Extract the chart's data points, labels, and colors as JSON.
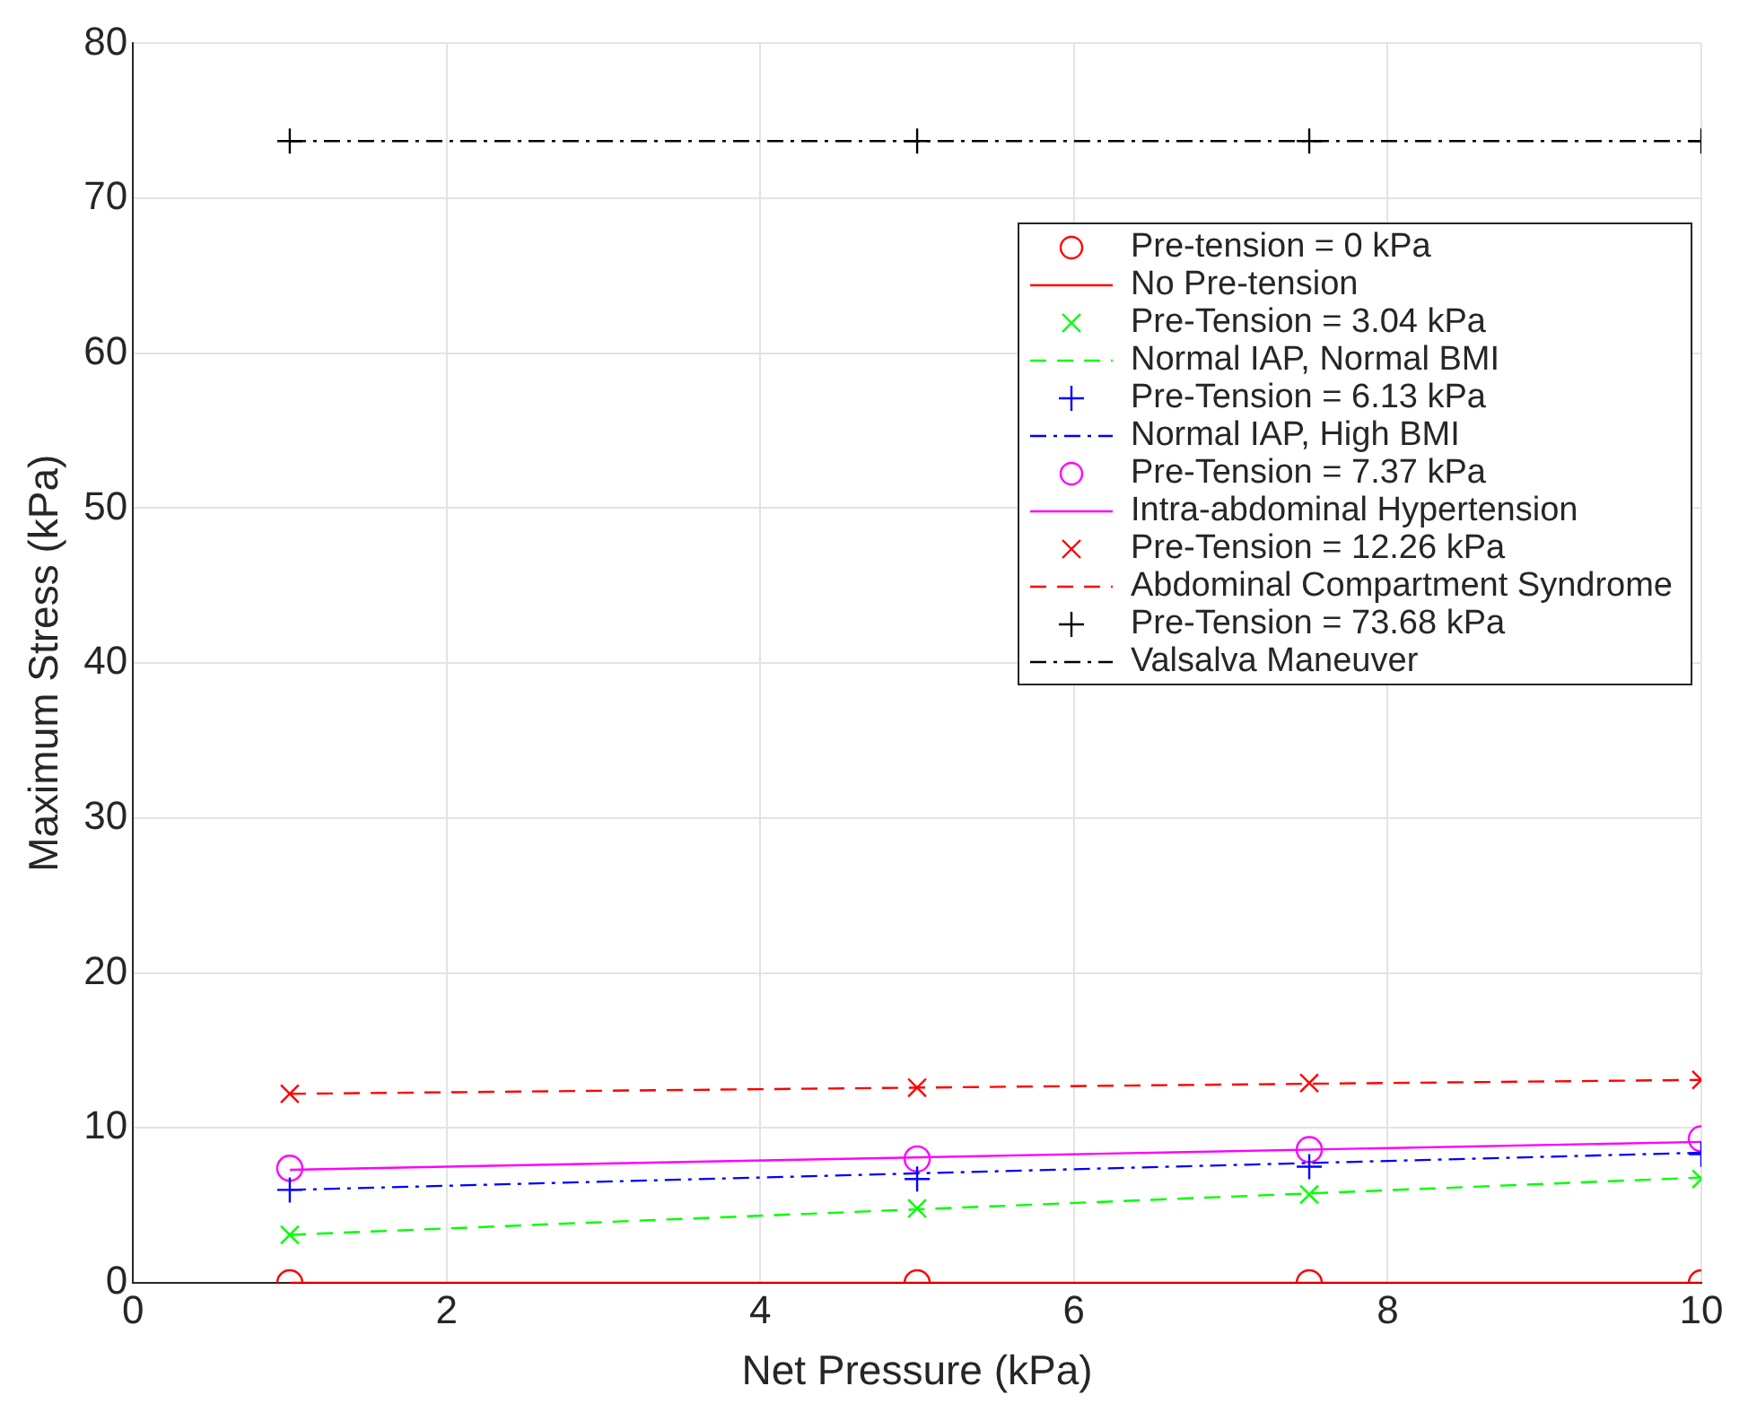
{
  "chart_data": {
    "type": "scatter",
    "xlabel": "Net Pressure (kPa)",
    "ylabel": "Maximum Stress (kPa)",
    "xlim": [
      0,
      10
    ],
    "xticks": [
      0,
      2,
      4,
      6,
      8,
      10
    ],
    "ylim": [
      0,
      80
    ],
    "yticks": [
      0,
      10,
      20,
      30,
      40,
      50,
      60,
      70,
      80
    ],
    "grid": true,
    "legend": "top right",
    "series": [
      {
        "name": "Pre-tension = 0 kPa",
        "marker": "circle",
        "color": "#ff0000",
        "x": [
          1,
          5,
          7.5,
          10
        ],
        "values": [
          0,
          0,
          0,
          0
        ]
      },
      {
        "name": "No Pre-tension",
        "type": "line",
        "marker": "none",
        "line_style": "solid",
        "color": "#ff0000",
        "x": [
          1,
          10
        ],
        "values": [
          0,
          0
        ]
      },
      {
        "name": "Pre-Tension = 3.04 kPa",
        "marker": "x",
        "color": "#00ff00",
        "x": [
          1,
          5,
          7.5,
          10
        ],
        "values": [
          3.1,
          4.8,
          5.7,
          6.7
        ]
      },
      {
        "name": "Normal IAP, Normal BMI",
        "type": "line",
        "marker": "none",
        "line_style": "dashed",
        "color": "#00ff00",
        "x": [
          1,
          10
        ],
        "values": [
          3.1,
          6.8
        ]
      },
      {
        "name": "Pre-Tension = 6.13 kPa",
        "marker": "cross",
        "color": "#0000ff",
        "x": [
          1,
          5,
          7.5,
          10
        ],
        "values": [
          6.0,
          6.7,
          7.5,
          8.3
        ]
      },
      {
        "name": "Normal IAP, High BMI",
        "type": "line",
        "marker": "none",
        "line_style": "dashdot",
        "color": "#0000ff",
        "x": [
          1,
          10
        ],
        "values": [
          6.0,
          8.4
        ]
      },
      {
        "name": "Pre-Tension = 7.37 kPa",
        "marker": "circle",
        "color": "#ff00ff",
        "x": [
          1,
          5,
          7.5,
          10
        ],
        "values": [
          7.4,
          8.0,
          8.6,
          9.3
        ]
      },
      {
        "name": "Intra-abdominal Hypertension",
        "type": "line",
        "marker": "none",
        "line_style": "solid",
        "color": "#ff00ff",
        "x": [
          1,
          10
        ],
        "values": [
          7.3,
          9.1
        ]
      },
      {
        "name": "Pre-Tension = 12.26 kPa",
        "marker": "x",
        "color": "#ff0000",
        "x": [
          1,
          5,
          7.5,
          10
        ],
        "values": [
          12.2,
          12.6,
          12.9,
          13.1
        ]
      },
      {
        "name": "Abdominal Compartment Syndrome",
        "type": "line",
        "marker": "none",
        "line_style": "dashed",
        "color": "#ff0000",
        "x": [
          1,
          10
        ],
        "values": [
          12.2,
          13.1
        ]
      },
      {
        "name": "Pre-Tension = 73.68 kPa",
        "marker": "cross",
        "color": "#000000",
        "x": [
          1,
          5,
          7.5,
          10
        ],
        "values": [
          73.7,
          73.7,
          73.7,
          73.7
        ]
      },
      {
        "name": "Valsalva Maneuver",
        "type": "line",
        "marker": "none",
        "line_style": "dashdot",
        "color": "#000000",
        "x": [
          1,
          10
        ],
        "values": [
          73.7,
          73.7
        ]
      }
    ]
  }
}
